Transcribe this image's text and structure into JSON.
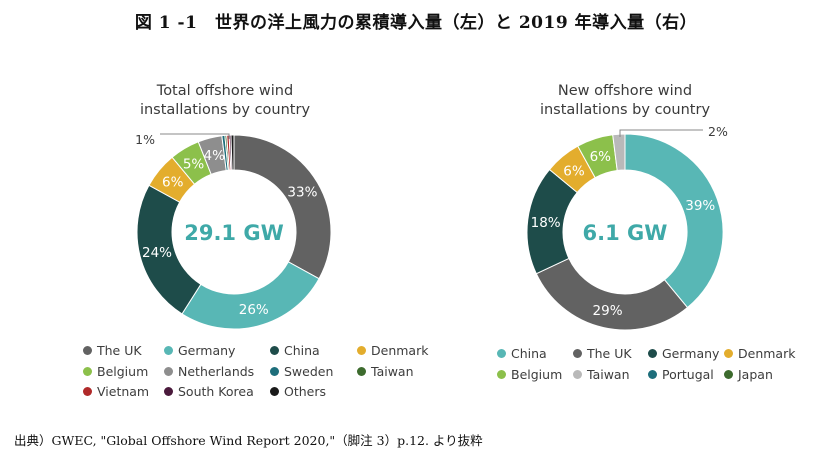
{
  "figure_title": "図 1 -1　世界の洋上風力の累積導入量（左）と 2019 年導入量（右）",
  "source": "出典）GWEC, \"Global Offshore Wind Report 2020,\"（脚注 3）p.12. より抜粋",
  "chart_data": [
    {
      "type": "pie",
      "title_lines": [
        "Total offshore wind",
        "installations by country"
      ],
      "center_label": "29.1 GW",
      "slices": [
        {
          "name": "The UK",
          "value": 33,
          "label": "33%",
          "color": "#626262"
        },
        {
          "name": "Germany",
          "value": 26,
          "label": "26%",
          "color": "#58b7b5"
        },
        {
          "name": "China",
          "value": 24,
          "label": "24%",
          "color": "#1e4c4a"
        },
        {
          "name": "Denmark",
          "value": 6,
          "label": "6%",
          "color": "#e3ad2d"
        },
        {
          "name": "Belgium",
          "value": 5,
          "label": "5%",
          "color": "#8cc04b"
        },
        {
          "name": "Netherlands",
          "value": 4,
          "label": "4%",
          "color": "#8e8e8e"
        },
        {
          "name": "Sweden",
          "value": 0.5,
          "label": "",
          "color": "#1e6e7b"
        },
        {
          "name": "Taiwan",
          "value": 0.3,
          "label": "",
          "color": "#3d6b2e"
        },
        {
          "name": "Vietnam",
          "value": 0.4,
          "label": "",
          "color": "#b02a2a"
        },
        {
          "name": "South Korea",
          "value": 0.3,
          "label": "",
          "color": "#4a1a3c"
        },
        {
          "name": "Others",
          "value": 0.5,
          "label": "",
          "color": "#1a1a1a"
        }
      ],
      "callout_label": "1%",
      "legend": [
        {
          "name": "The UK",
          "color": "#626262"
        },
        {
          "name": "Germany",
          "color": "#58b7b5"
        },
        {
          "name": "China",
          "color": "#1e4c4a"
        },
        {
          "name": "Denmark",
          "color": "#e3ad2d"
        },
        {
          "name": "Belgium",
          "color": "#8cc04b"
        },
        {
          "name": "Netherlands",
          "color": "#8e8e8e"
        },
        {
          "name": "Sweden",
          "color": "#1e6e7b"
        },
        {
          "name": "Taiwan",
          "color": "#3d6b2e"
        },
        {
          "name": "Vietnam",
          "color": "#b02a2a"
        },
        {
          "name": "South Korea",
          "color": "#4a1a3c"
        },
        {
          "name": "Others",
          "color": "#1a1a1a"
        }
      ]
    },
    {
      "type": "pie",
      "title_lines": [
        "New offshore wind",
        "installations by country"
      ],
      "center_label": "6.1 GW",
      "slices": [
        {
          "name": "China",
          "value": 39,
          "label": "39%",
          "color": "#58b7b5"
        },
        {
          "name": "The UK",
          "value": 29,
          "label": "29%",
          "color": "#626262"
        },
        {
          "name": "Germany",
          "value": 18,
          "label": "18%",
          "color": "#1e4c4a"
        },
        {
          "name": "Denmark",
          "value": 6,
          "label": "6%",
          "color": "#e3ad2d"
        },
        {
          "name": "Belgium",
          "value": 6,
          "label": "6%",
          "color": "#8cc04b"
        },
        {
          "name": "Taiwan",
          "value": 2,
          "label": "",
          "color": "#b9b9b9"
        }
      ],
      "callout_label": "2%",
      "legend": [
        {
          "name": "China",
          "color": "#58b7b5"
        },
        {
          "name": "The UK",
          "color": "#626262"
        },
        {
          "name": "Germany",
          "color": "#1e4c4a"
        },
        {
          "name": "Denmark",
          "color": "#e3ad2d"
        },
        {
          "name": "Belgium",
          "color": "#8cc04b"
        },
        {
          "name": "Taiwan",
          "color": "#b9b9b9"
        },
        {
          "name": "Portugal",
          "color": "#1e6e7b"
        },
        {
          "name": "Japan",
          "color": "#3d6b2e"
        }
      ]
    }
  ]
}
